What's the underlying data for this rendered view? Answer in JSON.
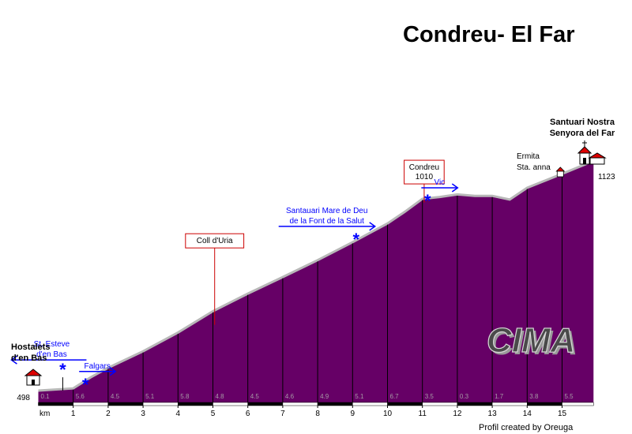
{
  "title": "Condreu- El Far",
  "credit": "Profil created by  Oreuga",
  "logo_text": "CIMA",
  "colors": {
    "fill": "#660066",
    "edge": "#b8b8b8",
    "arrow": "#0000ff",
    "box": "#cc0000"
  },
  "chart_data": {
    "type": "area",
    "title": "Condreu- El Far",
    "x_unit_label": "km",
    "xlim": [
      0,
      16
    ],
    "ylim": [
      498,
      1123
    ],
    "start_altitude": "498",
    "end_altitude": "1123",
    "x_ticks": [
      "1",
      "2",
      "3",
      "4",
      "5",
      "6",
      "7",
      "8",
      "9",
      "10",
      "11",
      "12",
      "13",
      "14",
      "15"
    ],
    "gradients": [
      {
        "km": 0,
        "label": "0.1"
      },
      {
        "km": 1,
        "label": "5.6"
      },
      {
        "km": 2,
        "label": "4.5"
      },
      {
        "km": 3,
        "label": "5.1"
      },
      {
        "km": 4,
        "label": "5.8"
      },
      {
        "km": 5,
        "label": "4.8"
      },
      {
        "km": 6,
        "label": "4.5"
      },
      {
        "km": 7,
        "label": "4.6"
      },
      {
        "km": 8,
        "label": "4.9"
      },
      {
        "km": 9,
        "label": "5.1"
      },
      {
        "km": 10,
        "label": "6.7"
      },
      {
        "km": 11,
        "label": "3.5"
      },
      {
        "km": 12,
        "label": "0.3"
      },
      {
        "km": 13,
        "label": "1.7"
      },
      {
        "km": 14,
        "label": "3.8"
      },
      {
        "km": 15,
        "label": "5.5"
      }
    ],
    "profile": [
      {
        "km": 0,
        "alt": 498
      },
      {
        "km": 1,
        "alt": 504
      },
      {
        "km": 1.5,
        "alt": 534
      },
      {
        "km": 2,
        "alt": 560
      },
      {
        "km": 3,
        "alt": 605
      },
      {
        "km": 4,
        "alt": 656
      },
      {
        "km": 5,
        "alt": 714
      },
      {
        "km": 6,
        "alt": 762
      },
      {
        "km": 7,
        "alt": 807
      },
      {
        "km": 8,
        "alt": 853
      },
      {
        "km": 9,
        "alt": 902
      },
      {
        "km": 10,
        "alt": 953
      },
      {
        "km": 10.5,
        "alt": 985
      },
      {
        "km": 11,
        "alt": 1020
      },
      {
        "km": 11.5,
        "alt": 1025
      },
      {
        "km": 12,
        "alt": 1032
      },
      {
        "km": 12.5,
        "alt": 1028
      },
      {
        "km": 13,
        "alt": 1028
      },
      {
        "km": 13.5,
        "alt": 1018
      },
      {
        "km": 14,
        "alt": 1050
      },
      {
        "km": 15,
        "alt": 1088
      },
      {
        "km": 15.9,
        "alt": 1123
      }
    ],
    "pass_boxes": [
      {
        "km": 5.05,
        "alt": 677,
        "lines": [
          "Coll d'Uria"
        ],
        "label_alt": 925
      },
      {
        "km": 11.05,
        "alt": 1010,
        "lines": [
          "Condreu",
          "1010"
        ],
        "label_alt": 1125
      }
    ],
    "endpoints": [
      {
        "km": 0.05,
        "lines": [
          "Hostalets",
          "d'en Bas"
        ],
        "icon": "village-icon",
        "side": "start"
      },
      {
        "km": 15.9,
        "lines": [
          "Santuari Nostra",
          "Senyora del Far"
        ],
        "icon": "church-icon",
        "side": "end"
      }
    ],
    "chapel": {
      "km": 14.95,
      "lines": [
        "Ermita",
        "Sta. anna"
      ],
      "icon": "chapel-icon"
    },
    "junctions": [
      {
        "km": 0.7,
        "alt": 560,
        "dir": "left",
        "lines": [
          "St. Esteve",
          "d'en Bas"
        ],
        "stem": true
      },
      {
        "km": 1.35,
        "alt": 520,
        "dir": "right",
        "lines": [
          "Falgars"
        ],
        "stem": false
      },
      {
        "km": 9.1,
        "alt": 915,
        "dir": "right",
        "lines": [
          "Santauari Mare de Deu",
          "de la Font de la Salut"
        ],
        "stem": false
      },
      {
        "km": 11.15,
        "alt": 1020,
        "dir": "right",
        "lines": [
          "Vic"
        ],
        "stem": false
      }
    ]
  }
}
